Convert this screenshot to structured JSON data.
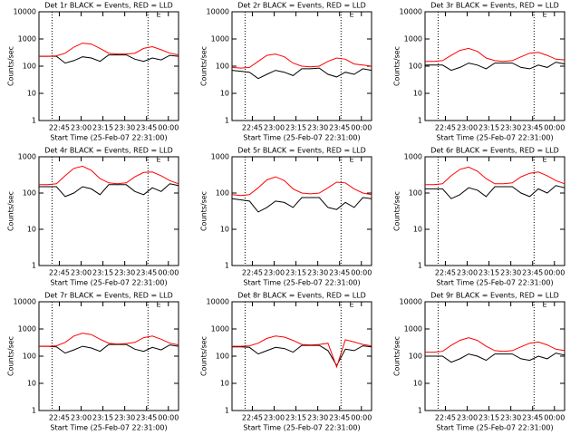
{
  "chart_data": [
    {
      "type": "line",
      "title": "Det 1r BLACK = Events, RED = LLD",
      "x_label": "Start Time (25-Feb-07 22:31:00)",
      "y_label": "Counts/sec",
      "flag": "E",
      "log_y": true,
      "x": [
        0,
        6,
        12,
        18,
        24,
        30,
        36,
        42,
        48,
        54,
        60,
        66,
        72,
        78,
        84,
        90,
        96
      ],
      "xlim": [
        0,
        96
      ],
      "ylim": [
        1,
        10000
      ],
      "yticks": [
        1,
        10,
        100,
        1000,
        10000
      ],
      "xticks": [
        {
          "value": 14,
          "label": "22:45"
        },
        {
          "value": 29,
          "label": "23:00"
        },
        {
          "value": 44,
          "label": "23:15"
        },
        {
          "value": 59,
          "label": "23:30"
        },
        {
          "value": 74,
          "label": "23:45"
        },
        {
          "value": 89,
          "label": "00:00"
        }
      ],
      "dotted_lines": [
        9,
        75
      ],
      "series": [
        {
          "name": "Events",
          "color": "#000000",
          "values": [
            230,
            230,
            230,
            130,
            160,
            220,
            200,
            150,
            260,
            260,
            260,
            180,
            150,
            200,
            170,
            250,
            230
          ]
        },
        {
          "name": "LLD",
          "color": "#ff0000",
          "values": [
            230,
            230,
            240,
            300,
            500,
            700,
            650,
            450,
            300,
            280,
            280,
            300,
            450,
            520,
            400,
            300,
            260
          ]
        }
      ]
    },
    {
      "type": "line",
      "title": "Det 2r BLACK = Events, RED = LLD",
      "x_label": "Start Time (25-Feb-07 22:31:00)",
      "y_label": "Counts/sec",
      "flag": "E",
      "log_y": true,
      "x": [
        0,
        6,
        12,
        18,
        24,
        30,
        36,
        42,
        48,
        54,
        60,
        66,
        72,
        78,
        84,
        90,
        96
      ],
      "xlim": [
        0,
        96
      ],
      "ylim": [
        1,
        10000
      ],
      "yticks": [
        1,
        10,
        100,
        1000,
        10000
      ],
      "xticks": [
        {
          "value": 14,
          "label": "22:45"
        },
        {
          "value": 29,
          "label": "23:00"
        },
        {
          "value": 44,
          "label": "23:15"
        },
        {
          "value": 59,
          "label": "23:30"
        },
        {
          "value": 74,
          "label": "23:45"
        },
        {
          "value": 89,
          "label": "00:00"
        }
      ],
      "dotted_lines": [
        9,
        75
      ],
      "series": [
        {
          "name": "Events",
          "color": "#000000",
          "values": [
            70,
            65,
            60,
            35,
            50,
            70,
            60,
            45,
            80,
            80,
            85,
            50,
            40,
            60,
            50,
            80,
            70
          ]
        },
        {
          "name": "LLD",
          "color": "#ff0000",
          "values": [
            90,
            85,
            90,
            150,
            250,
            280,
            220,
            130,
            100,
            95,
            100,
            150,
            200,
            180,
            120,
            110,
            100
          ]
        }
      ]
    },
    {
      "type": "line",
      "title": "Det 3r BLACK = Events, RED = LLD",
      "x_label": "Start Time (25-Feb-07 22:31:00)",
      "y_label": "Counts/sec",
      "flag": "E",
      "log_y": true,
      "x": [
        0,
        6,
        12,
        18,
        24,
        30,
        36,
        42,
        48,
        54,
        60,
        66,
        72,
        78,
        84,
        90,
        96
      ],
      "xlim": [
        0,
        96
      ],
      "ylim": [
        1,
        10000
      ],
      "yticks": [
        1,
        10,
        100,
        1000,
        10000
      ],
      "xticks": [
        {
          "value": 14,
          "label": "22:45"
        },
        {
          "value": 29,
          "label": "23:00"
        },
        {
          "value": 44,
          "label": "23:15"
        },
        {
          "value": 59,
          "label": "23:30"
        },
        {
          "value": 74,
          "label": "23:45"
        },
        {
          "value": 89,
          "label": "00:00"
        }
      ],
      "dotted_lines": [
        9,
        75
      ],
      "series": [
        {
          "name": "Events",
          "color": "#000000",
          "values": [
            110,
            110,
            110,
            70,
            90,
            130,
            110,
            80,
            130,
            130,
            130,
            90,
            80,
            110,
            90,
            140,
            120
          ]
        },
        {
          "name": "LLD",
          "color": "#ff0000",
          "values": [
            150,
            150,
            160,
            250,
            380,
            450,
            350,
            200,
            160,
            150,
            160,
            220,
            300,
            320,
            250,
            180,
            170
          ]
        }
      ]
    },
    {
      "type": "line",
      "title": "Det 4r BLACK = Events, RED = LLD",
      "x_label": "Start Time (25-Feb-07 22:31:00)",
      "y_label": "Counts/sec",
      "flag": "E",
      "log_y": true,
      "x": [
        0,
        6,
        12,
        18,
        24,
        30,
        36,
        42,
        48,
        54,
        60,
        66,
        72,
        78,
        84,
        90,
        96
      ],
      "xlim": [
        0,
        96
      ],
      "ylim": [
        1,
        1000
      ],
      "yticks": [
        1,
        10,
        100,
        1000
      ],
      "xticks": [
        {
          "value": 14,
          "label": "22:45"
        },
        {
          "value": 29,
          "label": "23:00"
        },
        {
          "value": 44,
          "label": "23:15"
        },
        {
          "value": 59,
          "label": "23:30"
        },
        {
          "value": 74,
          "label": "23:45"
        },
        {
          "value": 89,
          "label": "00:00"
        }
      ],
      "dotted_lines": [
        9,
        75
      ],
      "series": [
        {
          "name": "Events",
          "color": "#000000",
          "values": [
            150,
            150,
            150,
            80,
            100,
            150,
            130,
            90,
            170,
            170,
            170,
            110,
            90,
            140,
            110,
            180,
            160
          ]
        },
        {
          "name": "LLD",
          "color": "#ff0000",
          "values": [
            170,
            170,
            180,
            300,
            480,
            550,
            420,
            250,
            190,
            180,
            190,
            280,
            370,
            380,
            300,
            220,
            180
          ]
        }
      ]
    },
    {
      "type": "line",
      "title": "Det 5r BLACK = Events, RED = LLD",
      "x_label": "Start Time (25-Feb-07 22:31:00)",
      "y_label": "Counts/sec",
      "flag": "E",
      "log_y": true,
      "x": [
        0,
        6,
        12,
        18,
        24,
        30,
        36,
        42,
        48,
        54,
        60,
        66,
        72,
        78,
        84,
        90,
        96
      ],
      "xlim": [
        0,
        96
      ],
      "ylim": [
        1,
        1000
      ],
      "yticks": [
        1,
        10,
        100,
        1000
      ],
      "xticks": [
        {
          "value": 14,
          "label": "22:45"
        },
        {
          "value": 29,
          "label": "23:00"
        },
        {
          "value": 44,
          "label": "23:15"
        },
        {
          "value": 59,
          "label": "23:30"
        },
        {
          "value": 74,
          "label": "23:45"
        },
        {
          "value": 89,
          "label": "00:00"
        }
      ],
      "dotted_lines": [
        9,
        75
      ],
      "series": [
        {
          "name": "Events",
          "color": "#000000",
          "values": [
            70,
            65,
            60,
            30,
            40,
            60,
            55,
            40,
            75,
            75,
            75,
            40,
            35,
            55,
            40,
            75,
            70
          ]
        },
        {
          "name": "LLD",
          "color": "#ff0000",
          "values": [
            90,
            85,
            90,
            140,
            230,
            280,
            220,
            130,
            100,
            95,
            100,
            140,
            200,
            190,
            130,
            100,
            90
          ]
        }
      ]
    },
    {
      "type": "line",
      "title": "Det 6r BLACK = Events, RED = LLD",
      "x_label": "Start Time (25-Feb-07 22:31:00)",
      "y_label": "Counts/sec",
      "flag": "E",
      "log_y": true,
      "x": [
        0,
        6,
        12,
        18,
        24,
        30,
        36,
        42,
        48,
        54,
        60,
        66,
        72,
        78,
        84,
        90,
        96
      ],
      "xlim": [
        0,
        96
      ],
      "ylim": [
        1,
        1000
      ],
      "yticks": [
        1,
        10,
        100,
        1000
      ],
      "xticks": [
        {
          "value": 14,
          "label": "22:45"
        },
        {
          "value": 29,
          "label": "23:00"
        },
        {
          "value": 44,
          "label": "23:15"
        },
        {
          "value": 59,
          "label": "23:30"
        },
        {
          "value": 74,
          "label": "23:45"
        },
        {
          "value": 89,
          "label": "00:00"
        }
      ],
      "dotted_lines": [
        9,
        75
      ],
      "series": [
        {
          "name": "Events",
          "color": "#000000",
          "values": [
            130,
            130,
            130,
            70,
            90,
            140,
            120,
            80,
            150,
            150,
            150,
            100,
            80,
            130,
            100,
            160,
            140
          ]
        },
        {
          "name": "LLD",
          "color": "#ff0000",
          "values": [
            170,
            170,
            180,
            300,
            450,
            520,
            400,
            250,
            180,
            180,
            190,
            280,
            350,
            380,
            300,
            220,
            180
          ]
        }
      ]
    },
    {
      "type": "line",
      "title": "Det 7r BLACK = Events, RED = LLD",
      "x_label": "Start Time (25-Feb-07 22:31:00)",
      "y_label": "Counts/sec",
      "flag": "E",
      "log_y": true,
      "x": [
        0,
        6,
        12,
        18,
        24,
        30,
        36,
        42,
        48,
        54,
        60,
        66,
        72,
        78,
        84,
        90,
        96
      ],
      "xlim": [
        0,
        96
      ],
      "ylim": [
        1,
        10000
      ],
      "yticks": [
        1,
        10,
        100,
        1000,
        10000
      ],
      "xticks": [
        {
          "value": 14,
          "label": "22:45"
        },
        {
          "value": 29,
          "label": "23:00"
        },
        {
          "value": 44,
          "label": "23:15"
        },
        {
          "value": 59,
          "label": "23:30"
        },
        {
          "value": 74,
          "label": "23:45"
        },
        {
          "value": 89,
          "label": "00:00"
        }
      ],
      "dotted_lines": [
        9,
        75
      ],
      "series": [
        {
          "name": "Events",
          "color": "#000000",
          "values": [
            230,
            230,
            220,
            130,
            170,
            230,
            200,
            150,
            270,
            270,
            270,
            180,
            150,
            210,
            170,
            260,
            230
          ]
        },
        {
          "name": "LLD",
          "color": "#ff0000",
          "values": [
            230,
            230,
            240,
            320,
            550,
            700,
            620,
            420,
            300,
            280,
            290,
            320,
            480,
            550,
            420,
            300,
            260
          ]
        }
      ]
    },
    {
      "type": "line",
      "title": "Det 8r BLACK = Events, RED = LLD",
      "x_label": "Start Time (25-Feb-07 22:31:00)",
      "y_label": "Counts/sec",
      "flag": "E",
      "log_y": true,
      "x": [
        0,
        6,
        12,
        18,
        24,
        30,
        36,
        42,
        48,
        54,
        60,
        66,
        72,
        78,
        84,
        90,
        96
      ],
      "xlim": [
        0,
        96
      ],
      "ylim": [
        1,
        10000
      ],
      "yticks": [
        1,
        10,
        100,
        1000,
        10000
      ],
      "xticks": [
        {
          "value": 14,
          "label": "22:45"
        },
        {
          "value": 29,
          "label": "23:00"
        },
        {
          "value": 44,
          "label": "23:15"
        },
        {
          "value": 59,
          "label": "23:30"
        },
        {
          "value": 74,
          "label": "23:45"
        },
        {
          "value": 89,
          "label": "00:00"
        }
      ],
      "dotted_lines": [
        9,
        75
      ],
      "series": [
        {
          "name": "Events",
          "color": "#000000",
          "values": [
            220,
            220,
            210,
            120,
            160,
            210,
            190,
            140,
            250,
            250,
            250,
            160,
            45,
            180,
            160,
            240,
            220
          ]
        },
        {
          "name": "LLD",
          "color": "#ff0000",
          "values": [
            230,
            230,
            240,
            300,
            450,
            550,
            500,
            380,
            270,
            260,
            270,
            300,
            40,
            400,
            330,
            270,
            240
          ]
        }
      ]
    },
    {
      "type": "line",
      "title": "Det 9r BLACK = Events, RED = LLD",
      "x_label": "Start Time (25-Feb-07 22:31:00)",
      "y_label": "Counts/sec",
      "flag": "E",
      "log_y": true,
      "x": [
        0,
        6,
        12,
        18,
        24,
        30,
        36,
        42,
        48,
        54,
        60,
        66,
        72,
        78,
        84,
        90,
        96
      ],
      "xlim": [
        0,
        96
      ],
      "ylim": [
        1,
        10000
      ],
      "yticks": [
        1,
        10,
        100,
        1000,
        10000
      ],
      "xticks": [
        {
          "value": 14,
          "label": "22:45"
        },
        {
          "value": 29,
          "label": "23:00"
        },
        {
          "value": 44,
          "label": "23:15"
        },
        {
          "value": 59,
          "label": "23:30"
        },
        {
          "value": 74,
          "label": "23:45"
        },
        {
          "value": 89,
          "label": "00:00"
        }
      ],
      "dotted_lines": [
        9,
        75
      ],
      "series": [
        {
          "name": "Events",
          "color": "#000000",
          "values": [
            100,
            100,
            100,
            60,
            80,
            120,
            100,
            70,
            120,
            120,
            120,
            80,
            70,
            100,
            80,
            130,
            110
          ]
        },
        {
          "name": "LLD",
          "color": "#ff0000",
          "values": [
            140,
            140,
            150,
            250,
            380,
            480,
            380,
            230,
            160,
            150,
            160,
            220,
            300,
            330,
            260,
            180,
            160
          ]
        }
      ]
    }
  ]
}
